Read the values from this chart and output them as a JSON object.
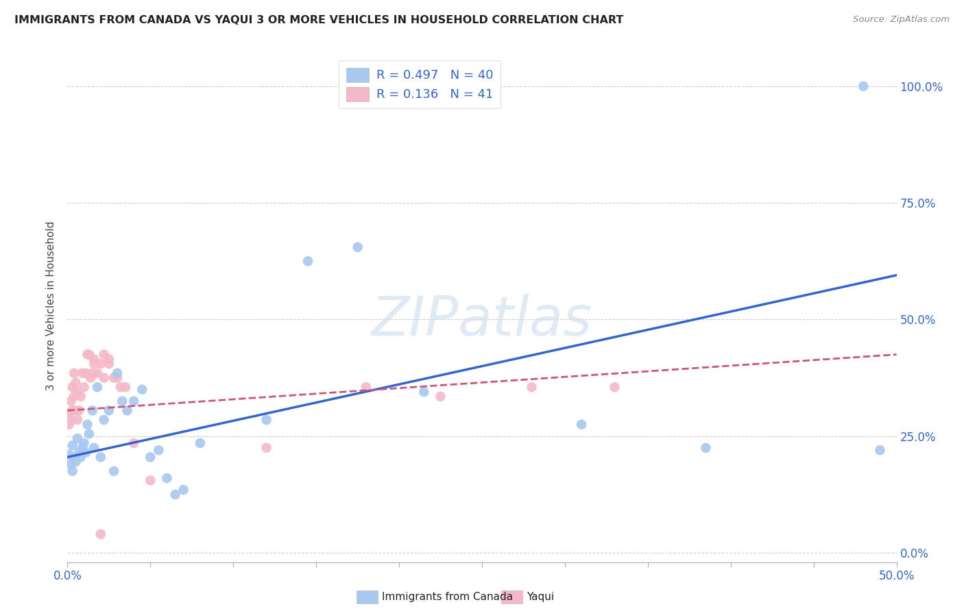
{
  "title": "IMMIGRANTS FROM CANADA VS YAQUI 3 OR MORE VEHICLES IN HOUSEHOLD CORRELATION CHART",
  "source": "Source: ZipAtlas.com",
  "xlabel_blue": "Immigrants from Canada",
  "xlabel_pink": "Yaqui",
  "ylabel": "3 or more Vehicles in Household",
  "watermark": "ZIPatlas",
  "blue_R": 0.497,
  "blue_N": 40,
  "pink_R": 0.136,
  "pink_N": 41,
  "blue_color": "#A8C8F0",
  "pink_color": "#F5B8C8",
  "blue_line_color": "#3366CC",
  "pink_line_color": "#CC5577",
  "legend_text_color": "#3366CC",
  "legend_label_color": "#000000",
  "xlim": [
    0.0,
    0.5
  ],
  "ylim": [
    -0.02,
    1.08
  ],
  "xticks_show": [
    0.0,
    0.5
  ],
  "xtick_minor": [
    0.05,
    0.1,
    0.15,
    0.2,
    0.25,
    0.3,
    0.35,
    0.4,
    0.45
  ],
  "yticks": [
    0.0,
    0.25,
    0.5,
    0.75,
    1.0
  ],
  "blue_x": [
    0.001,
    0.002,
    0.003,
    0.003,
    0.004,
    0.005,
    0.006,
    0.007,
    0.008,
    0.009,
    0.01,
    0.011,
    0.012,
    0.013,
    0.015,
    0.016,
    0.018,
    0.02,
    0.022,
    0.025,
    0.028,
    0.03,
    0.033,
    0.036,
    0.04,
    0.045,
    0.05,
    0.055,
    0.06,
    0.065,
    0.07,
    0.08,
    0.12,
    0.145,
    0.175,
    0.215,
    0.31,
    0.385,
    0.48,
    0.49
  ],
  "blue_y": [
    0.21,
    0.19,
    0.23,
    0.175,
    0.205,
    0.195,
    0.245,
    0.215,
    0.205,
    0.225,
    0.235,
    0.215,
    0.275,
    0.255,
    0.305,
    0.225,
    0.355,
    0.205,
    0.285,
    0.305,
    0.175,
    0.385,
    0.325,
    0.305,
    0.325,
    0.35,
    0.205,
    0.22,
    0.16,
    0.125,
    0.135,
    0.235,
    0.285,
    0.625,
    0.655,
    0.345,
    0.275,
    0.225,
    1.0,
    0.22
  ],
  "pink_x": [
    0.001,
    0.001,
    0.002,
    0.002,
    0.003,
    0.003,
    0.004,
    0.004,
    0.005,
    0.005,
    0.006,
    0.006,
    0.007,
    0.008,
    0.009,
    0.01,
    0.011,
    0.012,
    0.013,
    0.014,
    0.015,
    0.016,
    0.016,
    0.018,
    0.02,
    0.022,
    0.025,
    0.03,
    0.035,
    0.04,
    0.022,
    0.025,
    0.028,
    0.032,
    0.12,
    0.18,
    0.225,
    0.28,
    0.33,
    0.02,
    0.05
  ],
  "pink_y": [
    0.3,
    0.275,
    0.325,
    0.285,
    0.355,
    0.305,
    0.385,
    0.335,
    0.365,
    0.305,
    0.285,
    0.345,
    0.305,
    0.335,
    0.385,
    0.355,
    0.385,
    0.425,
    0.425,
    0.375,
    0.385,
    0.415,
    0.405,
    0.385,
    0.405,
    0.375,
    0.405,
    0.375,
    0.355,
    0.235,
    0.425,
    0.415,
    0.375,
    0.355,
    0.225,
    0.355,
    0.335,
    0.355,
    0.355,
    0.04,
    0.155
  ],
  "blue_trend_x0": 0.0,
  "blue_trend_y0": 0.205,
  "blue_trend_x1": 0.5,
  "blue_trend_y1": 0.595,
  "pink_trend_x0": 0.0,
  "pink_trend_y0": 0.305,
  "pink_trend_x1": 0.5,
  "pink_trend_y1": 0.425
}
